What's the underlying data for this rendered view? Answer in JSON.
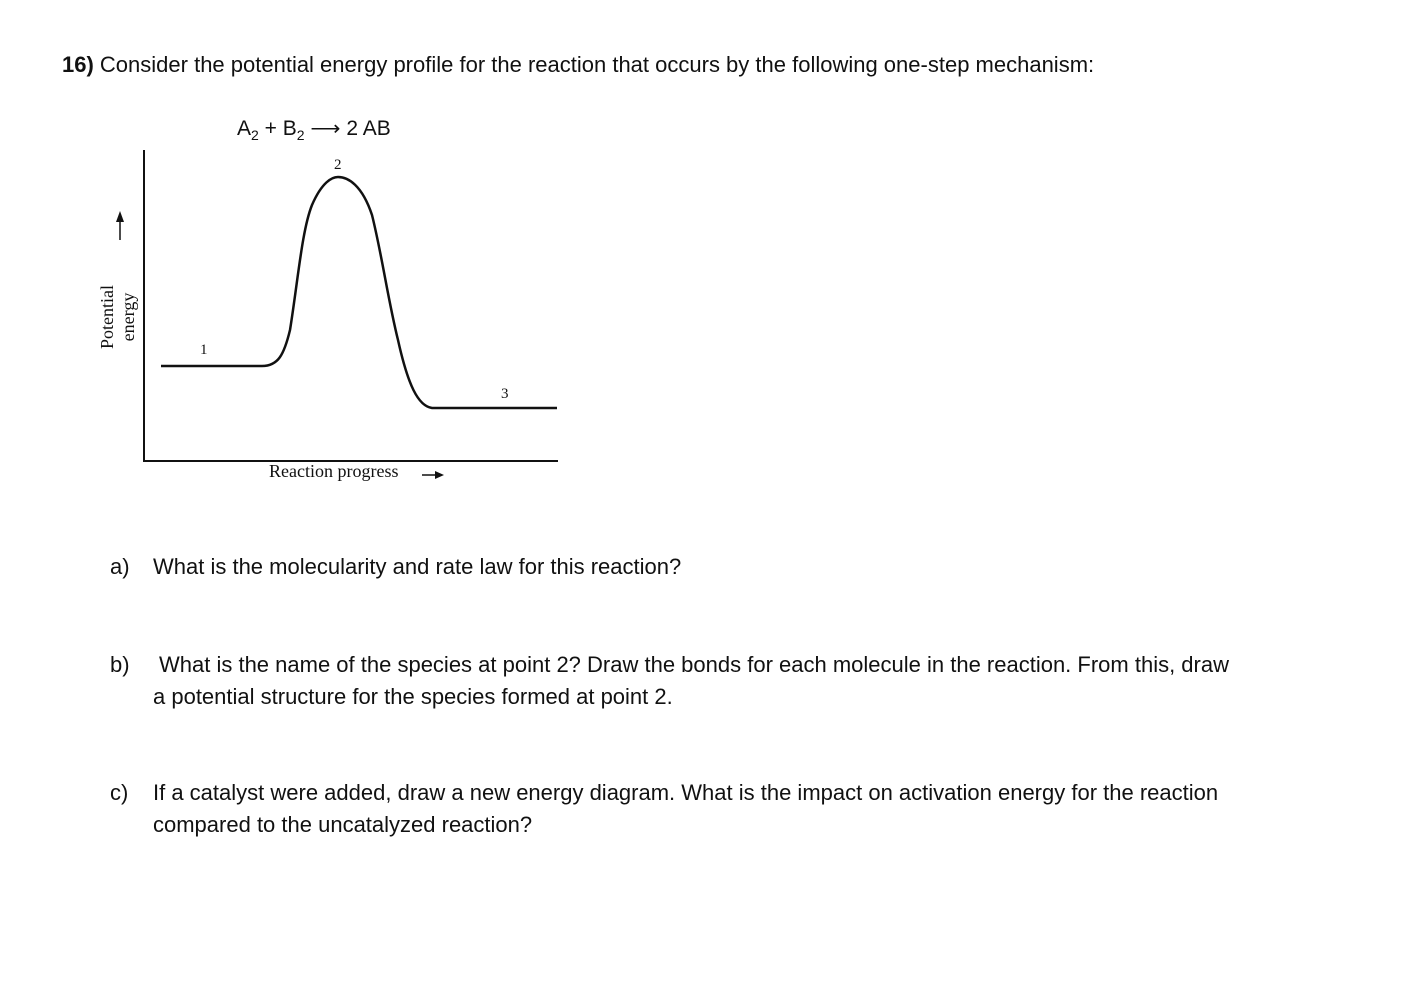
{
  "question": {
    "number": "16)",
    "text": "Consider the potential energy profile for the reaction that occurs by the following one-step mechanism:"
  },
  "equation": {
    "left": "A",
    "sub1": "2",
    "plus": " + B",
    "sub2": "2",
    "arrow": " ⟶ ",
    "right": "2 AB"
  },
  "diagram": {
    "y_label": "Potential energy",
    "x_label": "Reaction progress",
    "point_labels": [
      "1",
      "2",
      "3"
    ],
    "arrow_icon": "arrow-right-icon"
  },
  "parts": [
    {
      "label": "a)",
      "text": "What is the molecularity and rate law for this reaction?"
    },
    {
      "label": "b)",
      "text": "What is the name of the species at point 2?  Draw the bonds for each molecule in the reaction. From this, draw",
      "text2": "a potential structure for the species formed at point 2."
    },
    {
      "label": "c)",
      "text": "If a catalyst were added, draw a new energy diagram.  What is the impact on activation energy for the reaction",
      "text2": "compared to the uncatalyzed reaction?"
    }
  ]
}
